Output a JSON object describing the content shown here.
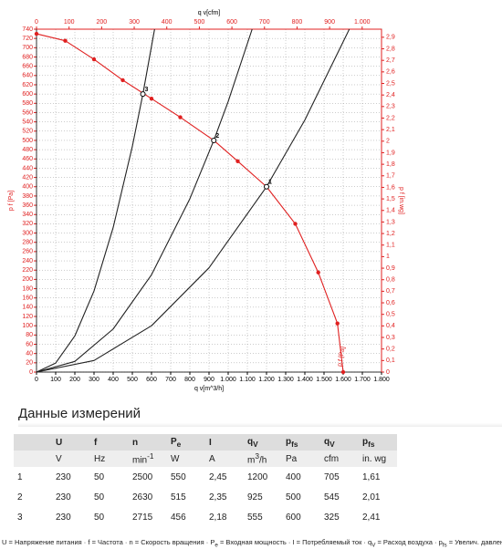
{
  "chart_data": {
    "type": "line",
    "xlabel": "q v[m^3/h]",
    "x2label": "q v[cfm]",
    "ylabel": "p f [Pa]",
    "y2label": "p f [in.wg]",
    "curve_label": "p f [Pa]",
    "xlim": [
      0,
      1800
    ],
    "xticks": [
      0,
      100,
      200,
      300,
      400,
      500,
      600,
      700,
      800,
      900,
      {
        "value": 1000,
        "label": "1.000"
      },
      {
        "value": 1100,
        "label": "1.100"
      },
      {
        "value": 1200,
        "label": "1.200"
      },
      {
        "value": 1300,
        "label": "1.300"
      },
      {
        "value": 1400,
        "label": "1.400"
      },
      {
        "value": 1500,
        "label": "1.500"
      },
      {
        "value": 1600,
        "label": "1.600"
      },
      {
        "value": 1700,
        "label": "1.700"
      },
      {
        "value": 1800,
        "label": "1.800"
      }
    ],
    "x2lim": [
      0,
      1059.4
    ],
    "x2ticks": [
      0,
      100,
      200,
      300,
      400,
      500,
      600,
      700,
      800,
      900,
      {
        "value": 1000,
        "label": "1.000"
      }
    ],
    "ylim": [
      0,
      740
    ],
    "yticks": [
      0,
      20,
      40,
      60,
      80,
      100,
      120,
      140,
      160,
      180,
      200,
      220,
      240,
      260,
      280,
      300,
      320,
      340,
      360,
      380,
      400,
      420,
      440,
      460,
      480,
      500,
      520,
      540,
      560,
      580,
      600,
      620,
      640,
      660,
      680,
      700,
      720,
      740
    ],
    "y2lim": [
      0,
      2.97
    ],
    "y2ticks": [
      0,
      {
        "value": 0.1,
        "label": "0,1"
      },
      {
        "value": 0.2,
        "label": "0,2"
      },
      {
        "value": 0.3,
        "label": "0,3"
      },
      {
        "value": 0.4,
        "label": "0,4"
      },
      {
        "value": 0.5,
        "label": "0,5"
      },
      {
        "value": 0.6,
        "label": "0,6"
      },
      {
        "value": 0.7,
        "label": "0,7"
      },
      {
        "value": 0.8,
        "label": "0,8"
      },
      {
        "value": 0.9,
        "label": "0,9"
      },
      1,
      {
        "value": 1.1,
        "label": "1,1"
      },
      {
        "value": 1.2,
        "label": "1,2"
      },
      {
        "value": 1.3,
        "label": "1,3"
      },
      {
        "value": 1.4,
        "label": "1,4"
      },
      {
        "value": 1.5,
        "label": "1,5"
      },
      {
        "value": 1.6,
        "label": "1,6"
      },
      {
        "value": 1.7,
        "label": "1,7"
      },
      {
        "value": 1.8,
        "label": "1,8"
      },
      {
        "value": 1.9,
        "label": "1,9"
      },
      2,
      {
        "value": 2.1,
        "label": "2,1"
      },
      {
        "value": 2.2,
        "label": "2,2"
      },
      {
        "value": 2.3,
        "label": "2,3"
      },
      {
        "value": 2.4,
        "label": "2,4"
      },
      {
        "value": 2.5,
        "label": "2,5"
      },
      {
        "value": 2.6,
        "label": "2,6"
      },
      {
        "value": 2.7,
        "label": "2,7"
      },
      {
        "value": 2.8,
        "label": "2,8"
      },
      {
        "value": 2.9,
        "label": "2,9"
      }
    ],
    "grid": true,
    "series": [
      {
        "color": "#e02020",
        "markers": true,
        "x": [
          0,
          150,
          300,
          450,
          600,
          750,
          925,
          1050,
          1200,
          1350,
          1470,
          1570,
          1600
        ],
        "values": [
          730,
          715,
          675,
          630,
          590,
          550,
          500,
          455,
          400,
          320,
          215,
          105,
          0
        ]
      },
      {
        "color": "#222222",
        "markers": false,
        "x": [
          0,
          100,
          200,
          300,
          400,
          500,
          555,
          616
        ],
        "values": [
          0,
          19.5,
          78,
          175,
          312,
          487,
          600,
          740
        ]
      },
      {
        "color": "#222222",
        "markers": false,
        "x": [
          0,
          200,
          400,
          600,
          800,
          925,
          1000,
          1125
        ],
        "values": [
          0,
          23,
          93,
          210,
          374,
          500,
          584,
          740
        ]
      },
      {
        "color": "#222222",
        "markers": false,
        "x": [
          0,
          300,
          600,
          900,
          1200,
          1400,
          1632
        ],
        "values": [
          0,
          25,
          100,
          225,
          400,
          544,
          740
        ]
      }
    ],
    "operating_points": [
      {
        "label": "1",
        "x": 1200,
        "y": 400
      },
      {
        "label": "2",
        "x": 925,
        "y": 500
      },
      {
        "label": "3",
        "x": 555,
        "y": 600
      }
    ]
  },
  "table": {
    "title": "Данные измерений",
    "header": [
      {
        "t": ""
      },
      {
        "t": "U"
      },
      {
        "t": "f"
      },
      {
        "t": "n"
      },
      {
        "t": "P",
        "sub": "e"
      },
      {
        "t": "I"
      },
      {
        "t": "q",
        "sub": "V"
      },
      {
        "t": "p",
        "sub": "fs"
      },
      {
        "t": "q",
        "sub": "V"
      },
      {
        "t": "p",
        "sub": "fs"
      }
    ],
    "units": [
      {
        "t": ""
      },
      {
        "t": "V"
      },
      {
        "t": "Hz"
      },
      {
        "t": "min",
        "sup": "-1"
      },
      {
        "t": "W"
      },
      {
        "t": "A"
      },
      {
        "t": "m",
        "sup": "3",
        "after": "/h"
      },
      {
        "t": "Pa"
      },
      {
        "t": "cfm"
      },
      {
        "t": "in. wg"
      }
    ],
    "rows": [
      [
        "1",
        "230",
        "50",
        "2500",
        "550",
        "2,45",
        "1200",
        "400",
        "705",
        "1,61"
      ],
      [
        "2",
        "230",
        "50",
        "2630",
        "515",
        "2,35",
        "925",
        "500",
        "545",
        "2,01"
      ],
      [
        "3",
        "230",
        "50",
        "2715",
        "456",
        "2,18",
        "555",
        "600",
        "325",
        "2,41"
      ]
    ],
    "separator": " · ",
    "legend": [
      {
        "t": "U",
        "d": "= Напряжение питания"
      },
      {
        "t": "f",
        "d": "= Частота"
      },
      {
        "t": "n",
        "d": "= Скорость вращения"
      },
      {
        "t": "P",
        "sub": "e",
        "d": "= Входная мощность"
      },
      {
        "t": "I",
        "d": "= Потребляемый ток"
      },
      {
        "t": "q",
        "sub": "V",
        "d": "= Расход воздуха"
      },
      {
        "t": "p",
        "sub": "fs",
        "d": "= Увелич. давления"
      }
    ]
  }
}
